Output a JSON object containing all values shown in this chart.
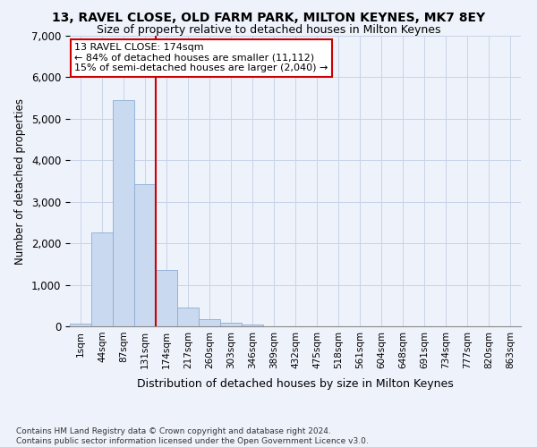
{
  "title_line1": "13, RAVEL CLOSE, OLD FARM PARK, MILTON KEYNES, MK7 8EY",
  "title_line2": "Size of property relative to detached houses in Milton Keynes",
  "xlabel": "Distribution of detached houses by size in Milton Keynes",
  "ylabel": "Number of detached properties",
  "footnote": "Contains HM Land Registry data © Crown copyright and database right 2024.\nContains public sector information licensed under the Open Government Licence v3.0.",
  "bar_labels": [
    "1sqm",
    "44sqm",
    "87sqm",
    "131sqm",
    "174sqm",
    "217sqm",
    "260sqm",
    "303sqm",
    "346sqm",
    "389sqm",
    "432sqm",
    "475sqm",
    "518sqm",
    "561sqm",
    "604sqm",
    "648sqm",
    "691sqm",
    "734sqm",
    "777sqm",
    "820sqm",
    "863sqm"
  ],
  "bar_values": [
    70,
    2260,
    5450,
    3420,
    1350,
    450,
    170,
    80,
    50,
    0,
    0,
    0,
    0,
    0,
    0,
    0,
    0,
    0,
    0,
    0,
    0
  ],
  "bar_color": "#c9d9f0",
  "bar_edge_color": "#8aadd4",
  "grid_color": "#c8d4e8",
  "background_color": "#eef2fb",
  "vline_x_index": 4,
  "vline_color": "#cc0000",
  "annotation_text": "13 RAVEL CLOSE: 174sqm\n← 84% of detached houses are smaller (11,112)\n15% of semi-detached houses are larger (2,040) →",
  "annotation_box_color": "#ffffff",
  "annotation_box_edge": "#cc0000",
  "ylim": [
    0,
    7000
  ],
  "yticks": [
    0,
    1000,
    2000,
    3000,
    4000,
    5000,
    6000,
    7000
  ]
}
